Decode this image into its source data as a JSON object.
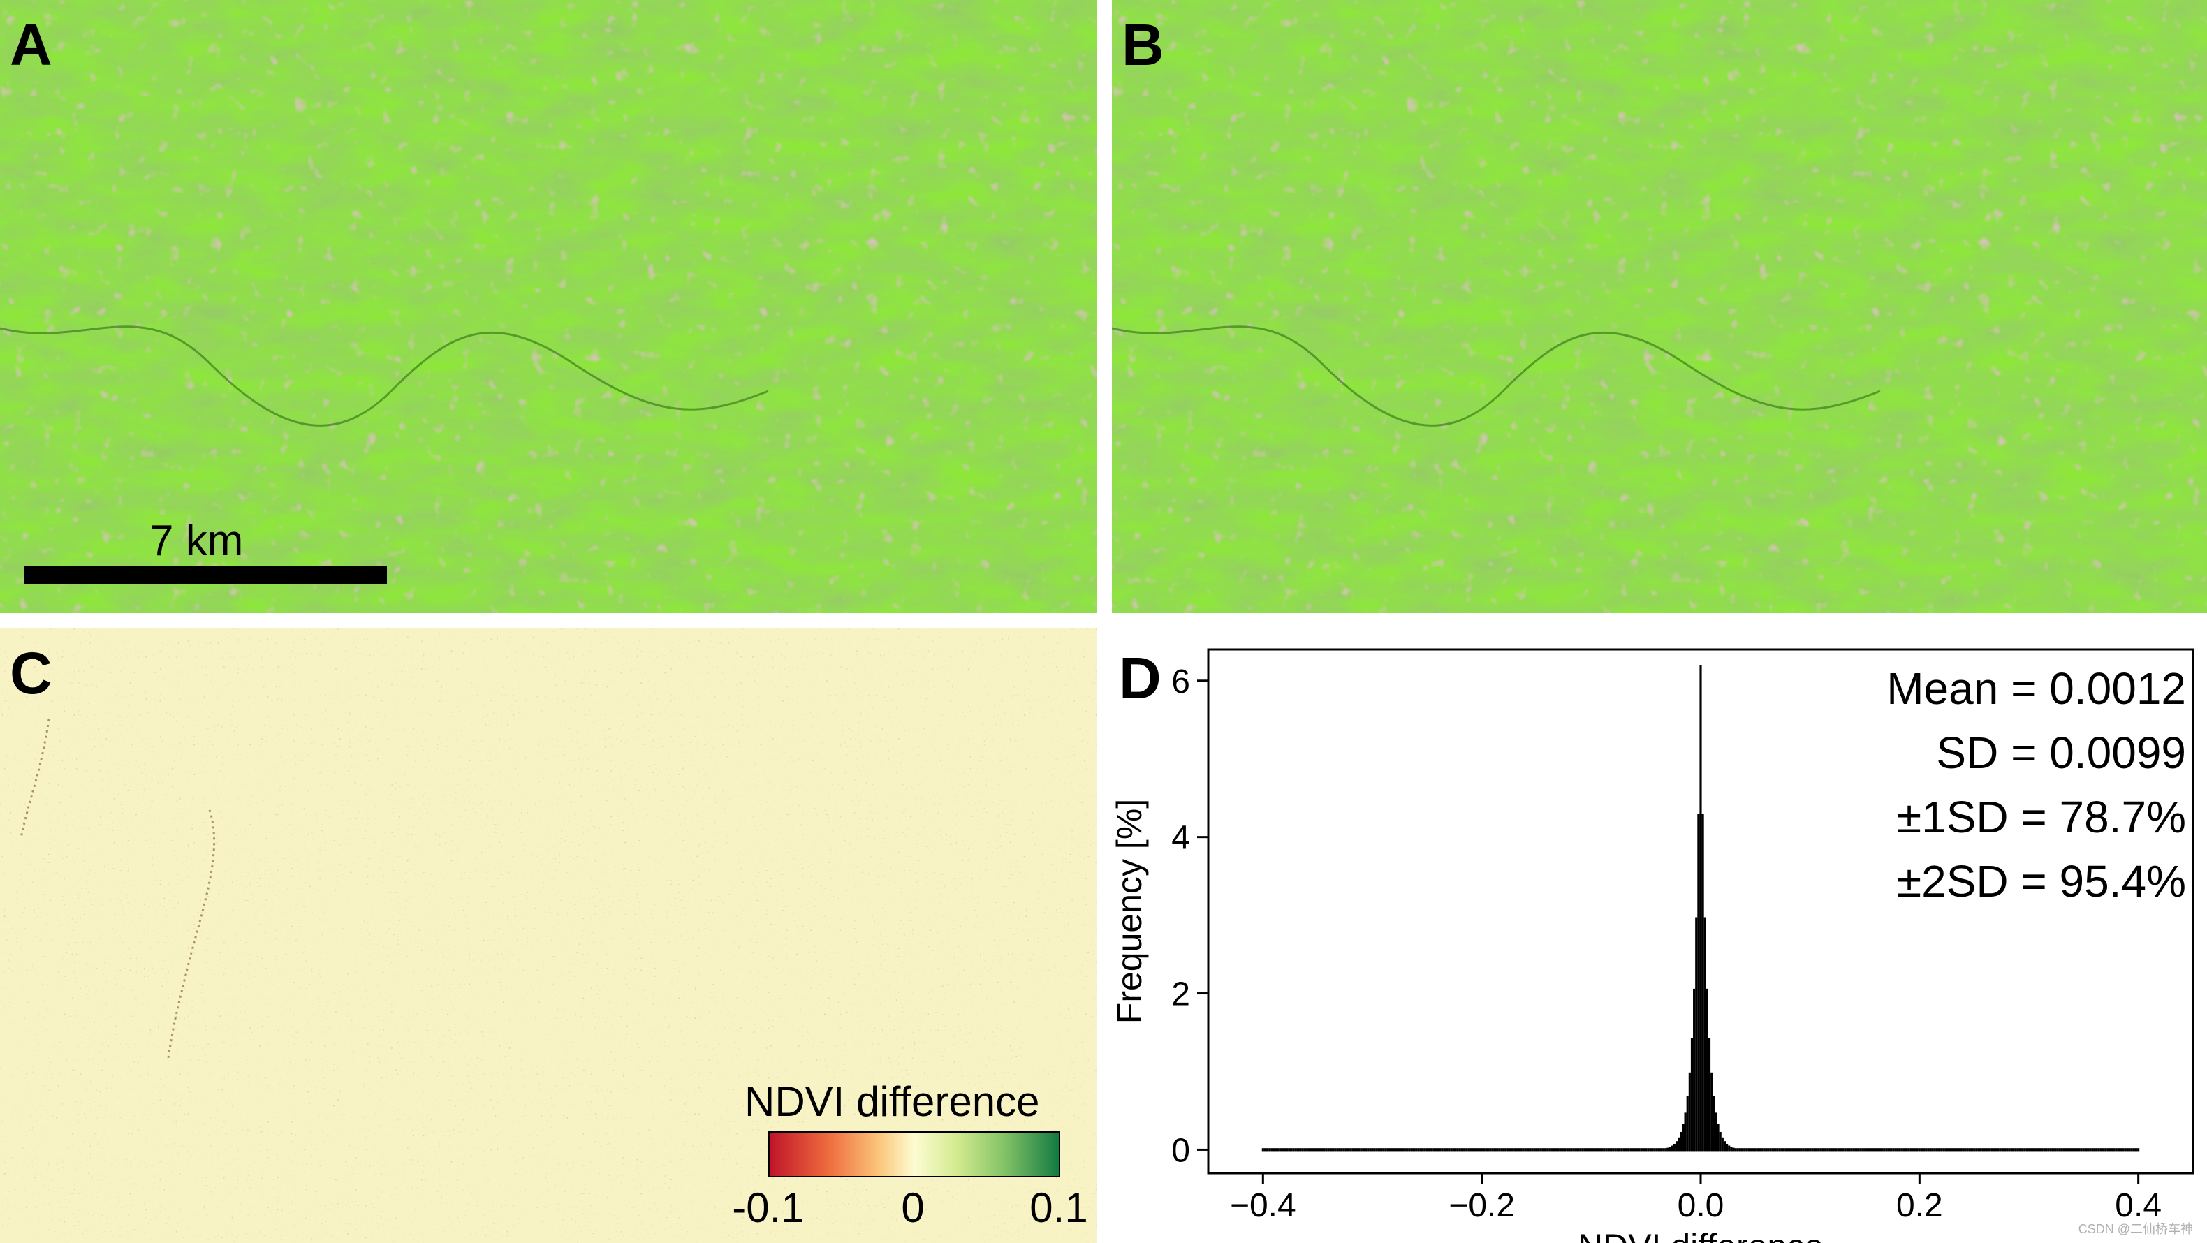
{
  "panels": {
    "a": {
      "letter": "A",
      "scale_label": "7 km"
    },
    "b": {
      "letter": "B"
    },
    "c": {
      "letter": "C",
      "legend_title": "NDVI difference",
      "colorbar_ticks": [
        "-0.1",
        "0",
        "0.1"
      ]
    },
    "d": {
      "letter": "D"
    }
  },
  "colors": {
    "vegetation_light": "#8ee63b",
    "vegetation_dark": "#3f8c16",
    "bare_pink": "#c98a9e",
    "diff_background": "#f8f3c4",
    "hist_fill": "#000000"
  },
  "watermark": "CSDN @二仙桥车神",
  "chart_data": {
    "type": "histogram",
    "xlabel": "NDVI difference",
    "ylabel": "Frequency [%]",
    "xlim": [
      -0.45,
      0.45
    ],
    "ylim": [
      -0.3,
      6.4
    ],
    "x_ticks": [
      -0.4,
      -0.2,
      0.0,
      0.2,
      0.4
    ],
    "x_tick_labels": [
      "−0.4",
      "−0.2",
      "0.0",
      "0.2",
      "0.4"
    ],
    "y_ticks": [
      0,
      2,
      4,
      6
    ],
    "y_tick_labels": [
      "0",
      "2",
      "4",
      "6"
    ],
    "x_range": [
      -0.4,
      0.4
    ],
    "peak_x": 0.0,
    "peak_frequency": 6.2,
    "stats_lines": [
      "Mean = 0.0012",
      "SD = 0.0099",
      "±1SD = 78.7%",
      "±2SD = 95.4%"
    ]
  }
}
